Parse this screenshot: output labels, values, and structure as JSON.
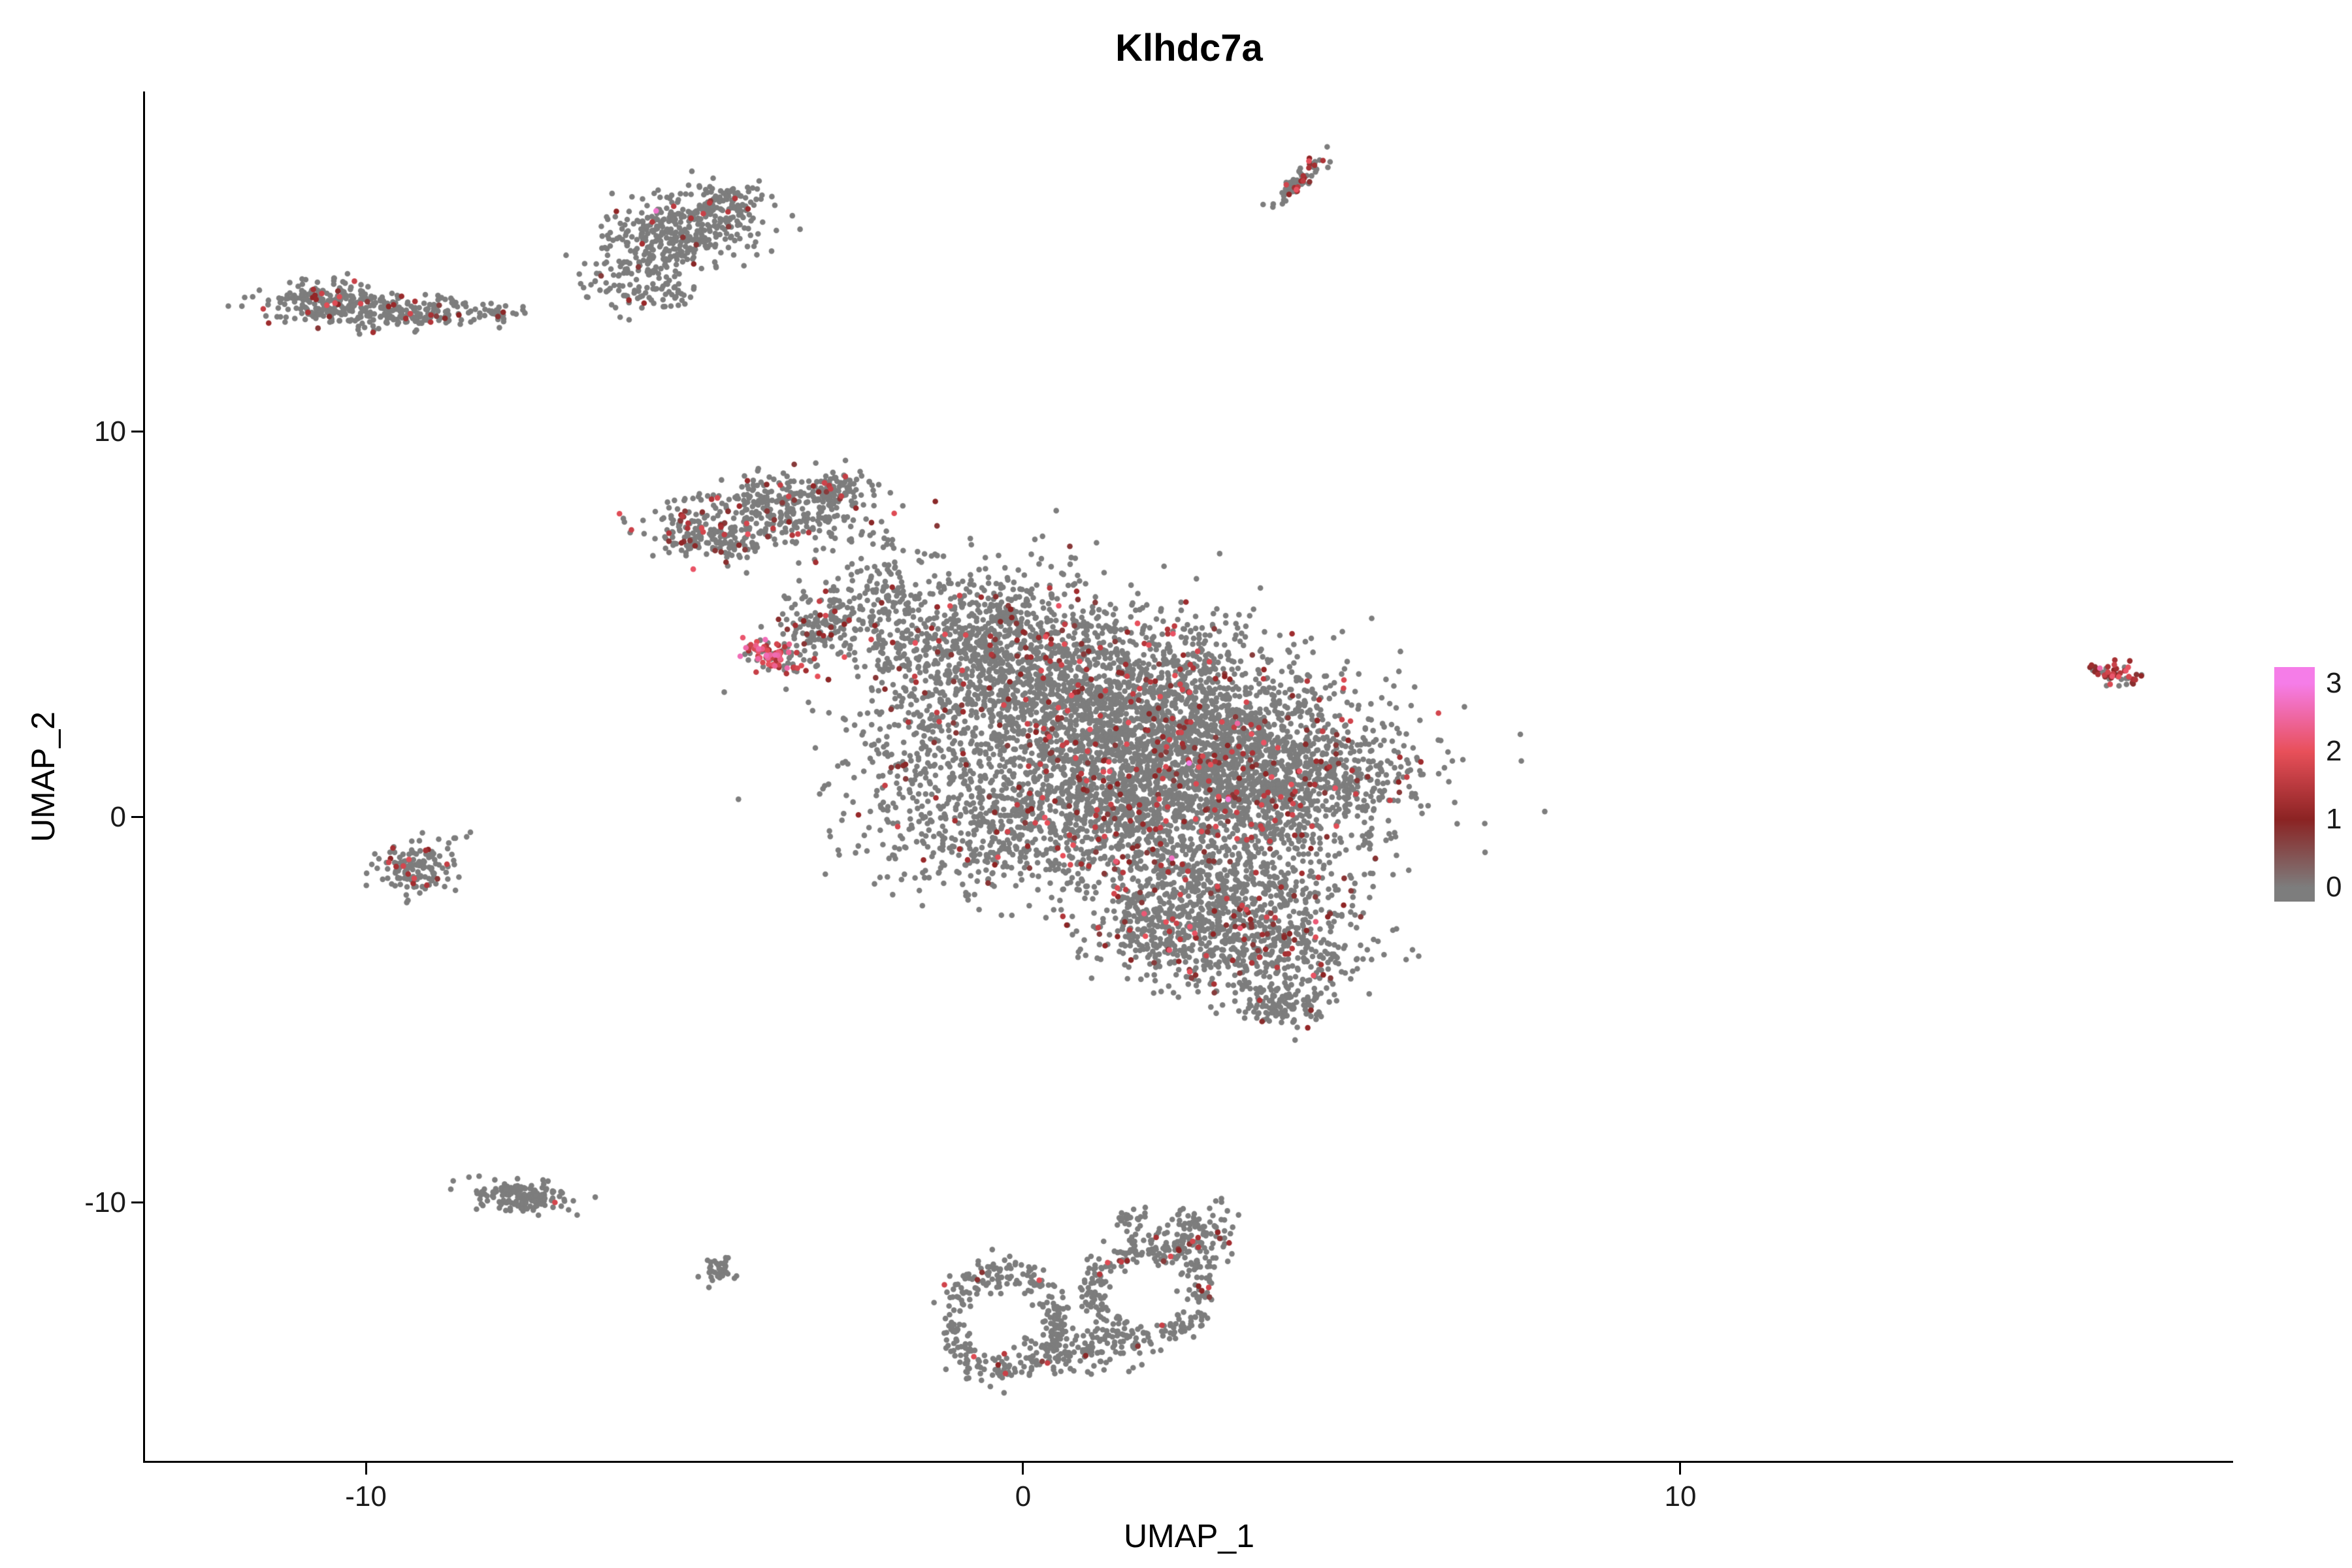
{
  "title": "Klhdc7a",
  "axes": {
    "x_label": "UMAP_1",
    "y_label": "UMAP_2",
    "x_ticks": [
      -10,
      0,
      10
    ],
    "y_ticks": [
      10,
      0,
      -10
    ]
  },
  "legend": {
    "labels": [
      "3",
      "2",
      "1",
      "0"
    ]
  },
  "chart_data": {
    "type": "scatter",
    "title": "Klhdc7a",
    "xlabel": "UMAP_1",
    "ylabel": "UMAP_2",
    "xlim": [
      -13.36,
      18.38
    ],
    "ylim": [
      -16.73,
      18.83
    ],
    "grid": false,
    "legend_position": "right",
    "point_color_default": "#7D7D7D",
    "point_radius_px": 4.3,
    "seed": 7,
    "colorscale": {
      "domain": [
        0,
        3
      ],
      "stops": [
        "#7D7D7D",
        "#8B2323",
        "#E8505A",
        "#F57DE8"
      ]
    },
    "clusters": [
      {
        "name": "streak-top",
        "shape": "gauss",
        "cx": 4.2,
        "cy": 16.55,
        "sx": 0.09,
        "sy": 0.42,
        "rot": -27,
        "n": 70,
        "expr": 0.3,
        "vmin": 0.8,
        "vmax": 2.2
      },
      {
        "name": "upperleft-main",
        "shape": "gauss",
        "cx": -5.2,
        "cy": 15.2,
        "sx": 0.55,
        "sy": 0.5,
        "rot": -10,
        "n": 320,
        "expr": 0.05,
        "vmin": 0.7,
        "vmax": 1.9
      },
      {
        "name": "upperleft-right",
        "shape": "gauss",
        "cx": -4.5,
        "cy": 15.9,
        "sx": 0.28,
        "sy": 0.26,
        "rot": 0,
        "n": 100,
        "expr": 0.06,
        "vmin": 0.7,
        "vmax": 1.9
      },
      {
        "name": "upperleft-tail",
        "shape": "gauss",
        "cx": -6.0,
        "cy": 14.2,
        "sx": 0.32,
        "sy": 0.4,
        "rot": -15,
        "n": 100,
        "expr": 0.04,
        "vmin": 0.7,
        "vmax": 1.8
      },
      {
        "name": "upperleft-lowtail",
        "shape": "gauss",
        "cx": -5.55,
        "cy": 13.6,
        "sx": 0.3,
        "sy": 0.18,
        "rot": 0,
        "n": 40,
        "expr": 0.03,
        "vmin": 0.7,
        "vmax": 1.6
      },
      {
        "name": "leftbar-a",
        "shape": "gauss",
        "cx": -10.5,
        "cy": 13.3,
        "sx": 0.5,
        "sy": 0.28,
        "rot": -5,
        "n": 240,
        "expr": 0.07,
        "vmin": 0.7,
        "vmax": 2.0
      },
      {
        "name": "leftbar-b",
        "shape": "gauss",
        "cx": -9.3,
        "cy": 13.1,
        "sx": 0.5,
        "sy": 0.2,
        "rot": 0,
        "n": 150,
        "expr": 0.05,
        "vmin": 0.7,
        "vmax": 1.8
      },
      {
        "name": "leftbar-dots",
        "shape": "gauss",
        "cx": -8.1,
        "cy": 13.05,
        "sx": 0.25,
        "sy": 0.12,
        "rot": 0,
        "n": 25,
        "expr": 0.02,
        "vmin": 0.7,
        "vmax": 1.4
      },
      {
        "name": "main-arm-a",
        "shape": "gauss",
        "cx": -4.8,
        "cy": 7.3,
        "sx": 0.5,
        "sy": 0.3,
        "rot": -25,
        "n": 210,
        "expr": 0.14,
        "vmin": 0.7,
        "vmax": 2.1
      },
      {
        "name": "main-arm-b",
        "shape": "gauss",
        "cx": -3.6,
        "cy": 8.0,
        "sx": 0.55,
        "sy": 0.42,
        "rot": -20,
        "n": 280,
        "expr": 0.08,
        "vmin": 0.7,
        "vmax": 2.0
      },
      {
        "name": "main-arm-c",
        "shape": "gauss",
        "cx": -2.85,
        "cy": 8.55,
        "sx": 0.25,
        "sy": 0.22,
        "rot": 0,
        "n": 80,
        "expr": 0.05,
        "vmin": 0.7,
        "vmax": 1.8
      },
      {
        "name": "main-redstreak",
        "shape": "gauss",
        "cx": -3.8,
        "cy": 4.15,
        "sx": 0.3,
        "sy": 0.16,
        "rot": -35,
        "n": 90,
        "expr": 0.7,
        "vmin": 1.2,
        "vmax": 2.7
      },
      {
        "name": "main-arm-lower",
        "shape": "gauss",
        "cx": -3.15,
        "cy": 4.95,
        "sx": 0.28,
        "sy": 0.5,
        "rot": -20,
        "n": 150,
        "expr": 0.12,
        "vmin": 0.7,
        "vmax": 2.0
      },
      {
        "name": "main-neck",
        "shape": "gauss",
        "cx": -2.2,
        "cy": 5.7,
        "sx": 0.38,
        "sy": 0.85,
        "rot": 0,
        "n": 140,
        "expr": 0.07,
        "vmin": 0.7,
        "vmax": 1.9
      },
      {
        "name": "main-body-nw",
        "shape": "gauss",
        "cx": -0.6,
        "cy": 4.6,
        "sx": 1.0,
        "sy": 1.0,
        "rot": 0,
        "n": 750,
        "expr": 0.08,
        "vmin": 0.7,
        "vmax": 2.1
      },
      {
        "name": "main-body-n",
        "shape": "gauss",
        "cx": 1.2,
        "cy": 3.2,
        "sx": 1.4,
        "sy": 1.1,
        "rot": 0,
        "n": 1500,
        "expr": 0.08,
        "vmin": 0.7,
        "vmax": 2.1
      },
      {
        "name": "main-body-c",
        "shape": "gauss",
        "cx": 2.6,
        "cy": 1.6,
        "sx": 1.4,
        "sy": 1.1,
        "rot": 0,
        "n": 1500,
        "expr": 0.08,
        "vmin": 0.7,
        "vmax": 2.1
      },
      {
        "name": "main-body-e",
        "shape": "gauss",
        "cx": 4.2,
        "cy": 0.9,
        "sx": 0.9,
        "sy": 0.9,
        "rot": 0,
        "n": 650,
        "expr": 0.08,
        "vmin": 0.7,
        "vmax": 2.1
      },
      {
        "name": "main-body-s",
        "shape": "gauss",
        "cx": 1.6,
        "cy": 0.1,
        "sx": 1.4,
        "sy": 0.9,
        "rot": 0,
        "n": 900,
        "expr": 0.08,
        "vmin": 0.7,
        "vmax": 2.1
      },
      {
        "name": "main-west-sparse",
        "shape": "gauss",
        "cx": -1.4,
        "cy": 1.3,
        "sx": 0.8,
        "sy": 1.1,
        "rot": 0,
        "n": 260,
        "expr": 0.06,
        "vmin": 0.7,
        "vmax": 1.9
      },
      {
        "name": "main-sw-sparse",
        "shape": "gauss",
        "cx": -0.6,
        "cy": -0.6,
        "sx": 0.7,
        "sy": 0.8,
        "rot": 0,
        "n": 220,
        "expr": 0.06,
        "vmin": 0.7,
        "vmax": 1.9
      },
      {
        "name": "main-lobe-se",
        "shape": "gauss",
        "cx": 3.0,
        "cy": -1.9,
        "sx": 1.0,
        "sy": 0.75,
        "rot": 0,
        "n": 620,
        "expr": 0.09,
        "vmin": 0.7,
        "vmax": 2.2
      },
      {
        "name": "main-lobe-s",
        "shape": "gauss",
        "cx": 2.1,
        "cy": -3.0,
        "sx": 0.6,
        "sy": 0.55,
        "rot": 0,
        "n": 280,
        "expr": 0.1,
        "vmin": 0.7,
        "vmax": 2.2
      },
      {
        "name": "main-lobe-bottom",
        "shape": "gauss",
        "cx": 3.8,
        "cy": -3.6,
        "sx": 0.7,
        "sy": 0.6,
        "rot": 0,
        "n": 380,
        "expr": 0.09,
        "vmin": 0.7,
        "vmax": 2.1
      },
      {
        "name": "main-tip-bottom",
        "shape": "gauss",
        "cx": 3.9,
        "cy": -4.9,
        "sx": 0.35,
        "sy": 0.25,
        "rot": 0,
        "n": 110,
        "expr": 0.05,
        "vmin": 0.7,
        "vmax": 1.8
      },
      {
        "name": "left-small",
        "shape": "gauss",
        "cx": -9.2,
        "cy": -1.3,
        "sx": 0.28,
        "sy": 0.33,
        "rot": 0,
        "n": 140,
        "expr": 0.07,
        "vmin": 0.8,
        "vmax": 2.0
      },
      {
        "name": "bottomleft-bar",
        "shape": "gauss",
        "cx": -7.6,
        "cy": -9.85,
        "sx": 0.4,
        "sy": 0.2,
        "rot": -8,
        "n": 160,
        "expr": 0.03,
        "vmin": 0.7,
        "vmax": 1.8
      },
      {
        "name": "tiny-dot",
        "shape": "gauss",
        "cx": -4.63,
        "cy": -11.75,
        "sx": 0.11,
        "sy": 0.16,
        "rot": 0,
        "n": 35,
        "expr": 0.02,
        "vmin": 0.7,
        "vmax": 1.4
      },
      {
        "name": "bottom-ring-left",
        "shape": "ring",
        "cx": -0.3,
        "cy": -13.1,
        "rx": 0.8,
        "ry": 1.3,
        "w": 0.16,
        "n": 280,
        "expr": 0.04,
        "vmin": 0.7,
        "vmax": 2.0
      },
      {
        "name": "bottom-ring-right",
        "shape": "ring",
        "cx": 1.9,
        "cy": -12.3,
        "rx": 0.85,
        "ry": 1.15,
        "w": 0.15,
        "n": 260,
        "expr": 0.05,
        "vmin": 0.7,
        "vmax": 2.0
      },
      {
        "name": "bottom-bridge",
        "shape": "gauss",
        "cx": 0.85,
        "cy": -13.8,
        "sx": 0.5,
        "sy": 0.3,
        "rot": 5,
        "n": 120,
        "expr": 0.03,
        "vmin": 0.7,
        "vmax": 1.8
      },
      {
        "name": "bottom-topright",
        "shape": "gauss",
        "cx": 2.6,
        "cy": -10.9,
        "sx": 0.3,
        "sy": 0.42,
        "rot": -20,
        "n": 120,
        "expr": 0.05,
        "vmin": 0.7,
        "vmax": 1.9
      },
      {
        "name": "bottom-nub",
        "shape": "gauss",
        "cx": 1.7,
        "cy": -10.45,
        "sx": 0.14,
        "sy": 0.12,
        "rot": 0,
        "n": 25,
        "expr": 0.04,
        "vmin": 0.7,
        "vmax": 1.6
      },
      {
        "name": "far-right",
        "shape": "gauss",
        "cx": 16.6,
        "cy": 3.7,
        "sx": 0.17,
        "sy": 0.14,
        "rot": -30,
        "n": 55,
        "expr": 0.65,
        "vmin": 0.8,
        "vmax": 2.2
      }
    ]
  }
}
